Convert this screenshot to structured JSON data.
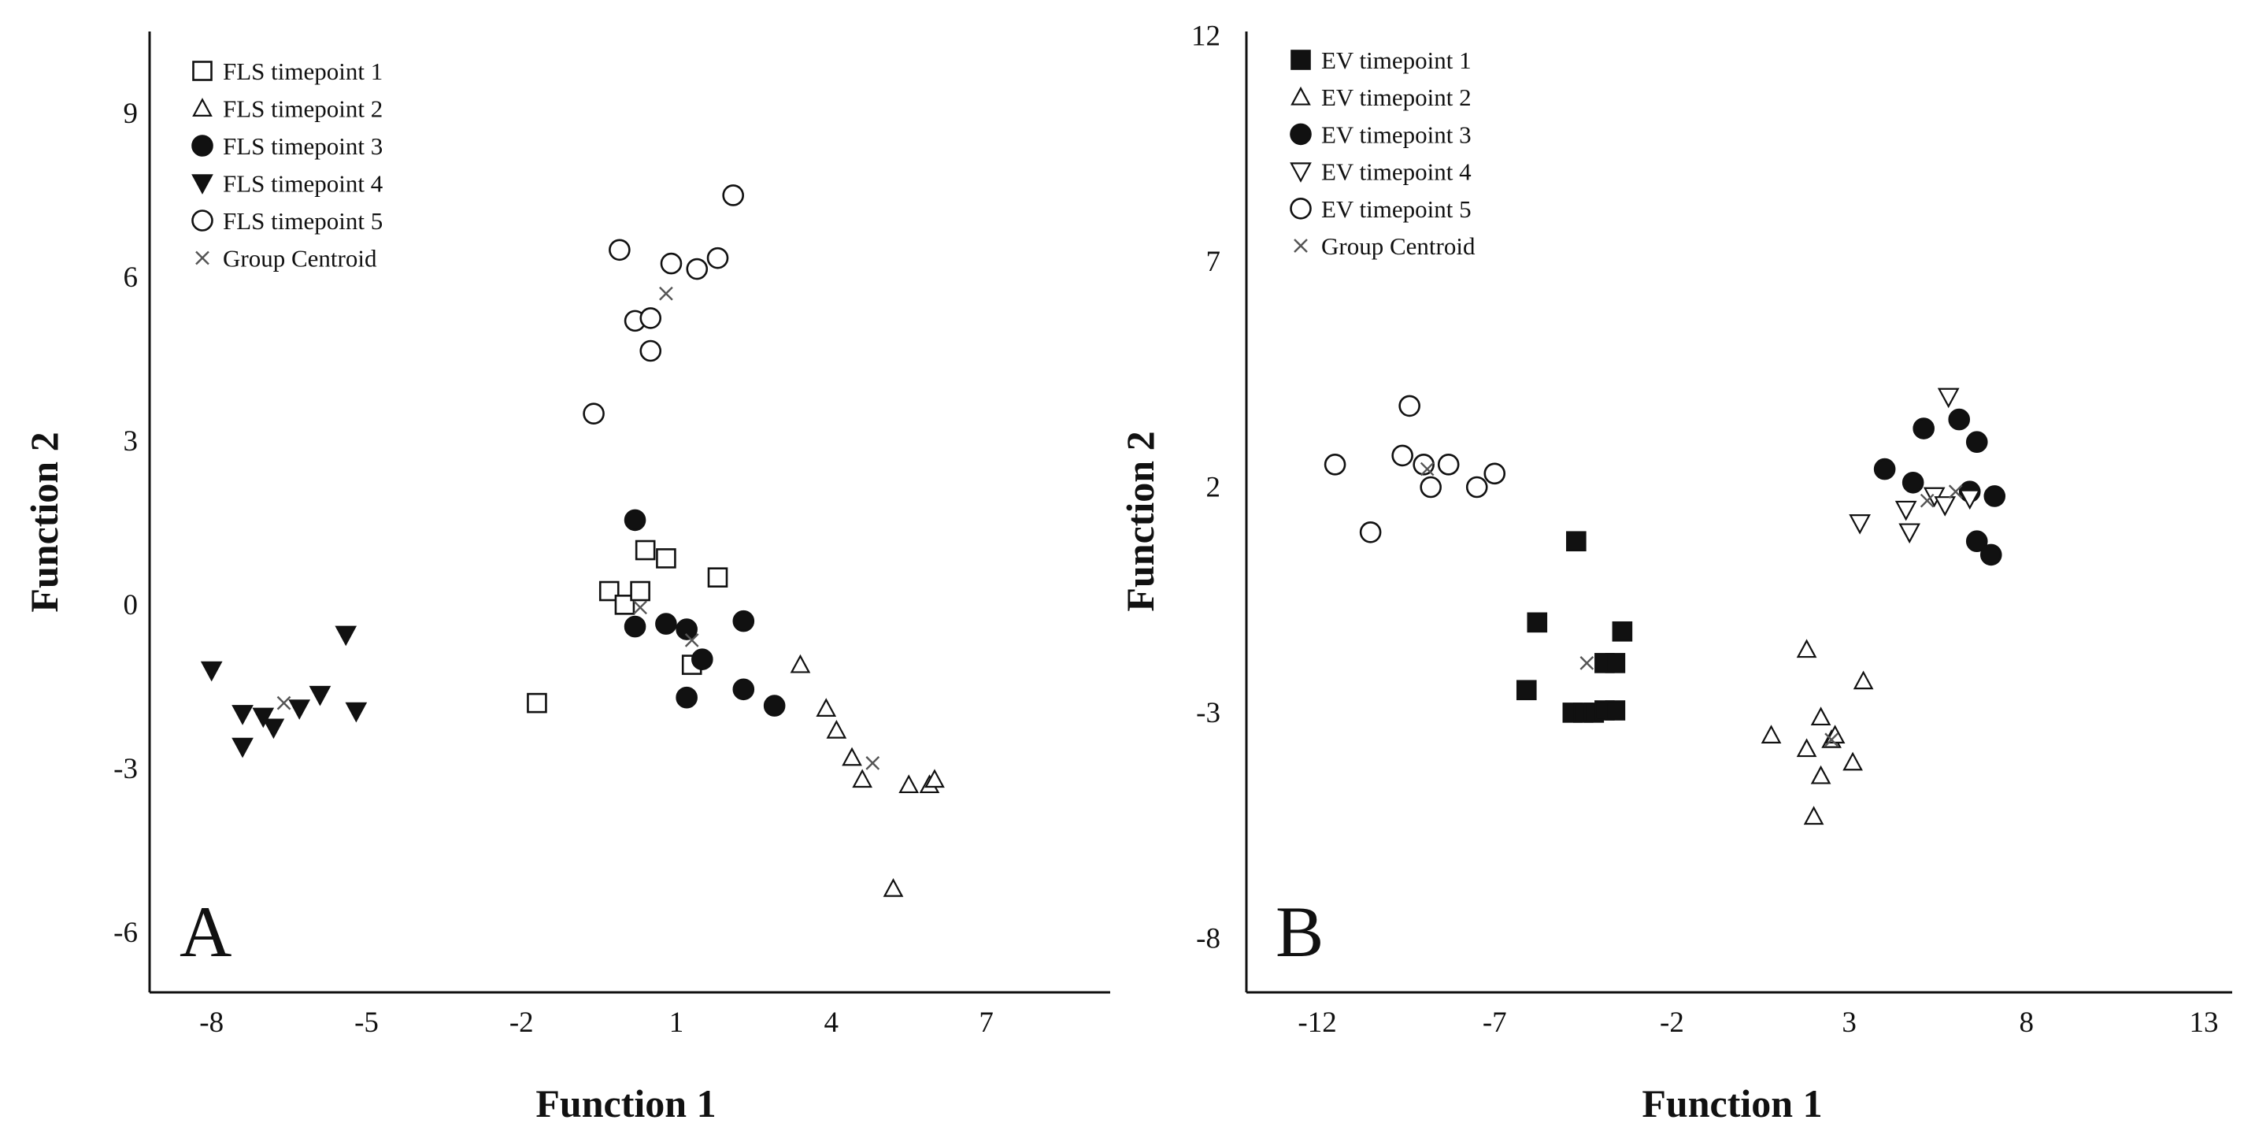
{
  "chart_data": [
    {
      "type": "scatter",
      "panel_label": "A",
      "xlabel": "Function 1",
      "ylabel": "Function 2",
      "xlim": [
        -9.2,
        9.4
      ],
      "ylim": [
        -7.1,
        10.5
      ],
      "xticks": [
        -8,
        -5,
        -2,
        1,
        4,
        7
      ],
      "yticks": [
        9,
        6,
        3,
        0,
        -3,
        -6
      ],
      "legend_position": "top-left",
      "series": [
        {
          "name": "FLS timepoint 1",
          "marker": "square-open",
          "points": [
            [
              -1.7,
              -1.8
            ],
            [
              -0.3,
              0.25
            ],
            [
              0.0,
              0.0
            ],
            [
              0.3,
              0.25
            ],
            [
              0.4,
              1.0
            ],
            [
              0.8,
              0.85
            ],
            [
              1.3,
              -1.1
            ],
            [
              1.8,
              0.5
            ]
          ]
        },
        {
          "name": "FLS timepoint 2",
          "marker": "triangle-open",
          "points": [
            [
              3.4,
              -1.1
            ],
            [
              3.9,
              -1.9
            ],
            [
              4.1,
              -2.3
            ],
            [
              4.4,
              -2.8
            ],
            [
              4.6,
              -3.2
            ],
            [
              5.5,
              -3.3
            ],
            [
              5.9,
              -3.3
            ],
            [
              6.0,
              -3.2
            ],
            [
              5.2,
              -5.2
            ]
          ]
        },
        {
          "name": "FLS timepoint 3",
          "marker": "circle-filled",
          "points": [
            [
              0.2,
              1.55
            ],
            [
              0.2,
              -0.4
            ],
            [
              0.8,
              -0.35
            ],
            [
              1.2,
              -0.45
            ],
            [
              1.5,
              -1.0
            ],
            [
              1.2,
              -1.7
            ],
            [
              2.3,
              -0.3
            ],
            [
              2.3,
              -1.55
            ],
            [
              2.9,
              -1.85
            ]
          ]
        },
        {
          "name": "FLS timepoint 4",
          "marker": "triangle-down-filled",
          "points": [
            [
              -8.0,
              -1.2
            ],
            [
              -7.4,
              -2.0
            ],
            [
              -7.0,
              -2.05
            ],
            [
              -6.8,
              -2.25
            ],
            [
              -6.3,
              -1.9
            ],
            [
              -5.9,
              -1.65
            ],
            [
              -5.4,
              -0.55
            ],
            [
              -5.2,
              -1.95
            ],
            [
              -7.4,
              -2.6
            ]
          ]
        },
        {
          "name": "FLS timepoint 5",
          "marker": "circle-open",
          "points": [
            [
              -0.6,
              3.5
            ],
            [
              -0.1,
              6.5
            ],
            [
              0.2,
              5.2
            ],
            [
              0.5,
              5.25
            ],
            [
              0.5,
              4.65
            ],
            [
              0.9,
              6.25
            ],
            [
              1.4,
              6.15
            ],
            [
              1.8,
              6.35
            ],
            [
              2.1,
              7.5
            ]
          ]
        },
        {
          "name": "Group Centroid",
          "marker": "x",
          "points": [
            [
              0.3,
              -0.05
            ],
            [
              4.8,
              -2.9
            ],
            [
              1.3,
              -0.65
            ],
            [
              -6.6,
              -1.8
            ],
            [
              0.8,
              5.7
            ]
          ]
        }
      ]
    },
    {
      "type": "scatter",
      "panel_label": "B",
      "xlabel": "Function 1",
      "ylabel": "Function 2",
      "xlim": [
        -14,
        13.8
      ],
      "ylim": [
        -9.2,
        12.1
      ],
      "xticks": [
        -12,
        -7,
        -2,
        3,
        8,
        13
      ],
      "yticks": [
        12,
        7,
        2,
        -3,
        -8
      ],
      "legend_position": "top-left",
      "series": [
        {
          "name": "EV timepoint 1",
          "marker": "square-filled",
          "points": [
            [
              -4.7,
              0.8
            ],
            [
              -5.8,
              -1.0
            ],
            [
              -6.1,
              -2.5
            ],
            [
              -3.9,
              -1.9
            ],
            [
              -3.6,
              -1.9
            ],
            [
              -3.4,
              -1.2
            ],
            [
              -4.8,
              -3.0
            ],
            [
              -4.5,
              -3.0
            ],
            [
              -4.2,
              -3.0
            ],
            [
              -3.9,
              -2.95
            ],
            [
              -3.6,
              -2.95
            ]
          ]
        },
        {
          "name": "EV timepoint 2",
          "marker": "triangle-open",
          "points": [
            [
              1.8,
              -1.6
            ],
            [
              0.8,
              -3.5
            ],
            [
              1.8,
              -3.8
            ],
            [
              2.2,
              -3.1
            ],
            [
              2.5,
              -3.6
            ],
            [
              2.2,
              -4.4
            ],
            [
              2.0,
              -5.3
            ],
            [
              3.4,
              -2.3
            ],
            [
              3.1,
              -4.1
            ],
            [
              2.6,
              -3.5
            ]
          ]
        },
        {
          "name": "EV timepoint 3",
          "marker": "circle-filled",
          "points": [
            [
              4.0,
              2.4
            ],
            [
              4.8,
              2.1
            ],
            [
              5.1,
              3.3
            ],
            [
              6.1,
              3.5
            ],
            [
              6.6,
              3.0
            ],
            [
              6.4,
              1.9
            ],
            [
              7.1,
              1.8
            ],
            [
              6.6,
              0.8
            ],
            [
              7.0,
              0.5
            ]
          ]
        },
        {
          "name": "EV timepoint 4",
          "marker": "triangle-down-open",
          "points": [
            [
              3.3,
              1.2
            ],
            [
              4.6,
              1.5
            ],
            [
              4.7,
              1.0
            ],
            [
              5.4,
              1.8
            ],
            [
              5.7,
              1.6
            ],
            [
              5.8,
              4.0
            ],
            [
              6.4,
              1.75
            ]
          ]
        },
        {
          "name": "EV timepoint 5",
          "marker": "circle-open",
          "points": [
            [
              -11.5,
              2.5
            ],
            [
              -10.5,
              1.0
            ],
            [
              -9.6,
              2.7
            ],
            [
              -9.4,
              3.8
            ],
            [
              -9.0,
              2.5
            ],
            [
              -8.8,
              2.0
            ],
            [
              -8.3,
              2.5
            ],
            [
              -7.5,
              2.0
            ],
            [
              -7.0,
              2.3
            ]
          ]
        },
        {
          "name": "Group Centroid",
          "marker": "x",
          "points": [
            [
              -4.4,
              -1.9
            ],
            [
              2.5,
              -3.6
            ],
            [
              6.0,
              1.9
            ],
            [
              5.2,
              1.7
            ],
            [
              -8.9,
              2.4
            ]
          ]
        }
      ]
    }
  ]
}
